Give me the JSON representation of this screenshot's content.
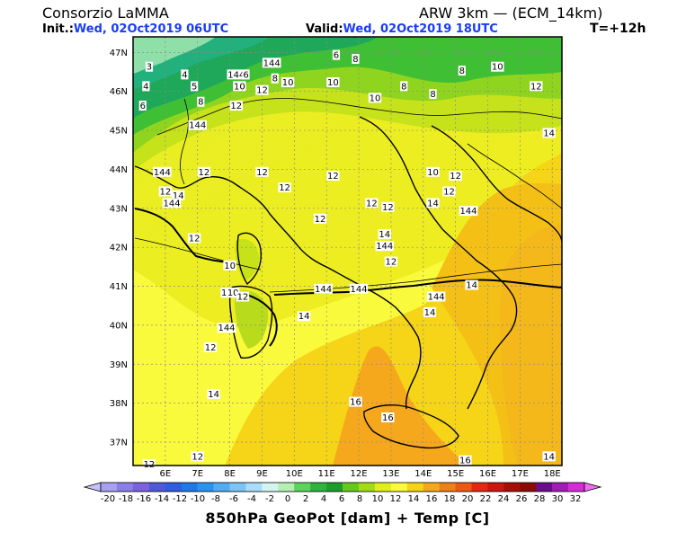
{
  "header": {
    "org": "Consorzio LaMMA",
    "model": "ARW 3km — (ECM_14km)",
    "init_label": "Init.:",
    "init_value": "Wed, 02Oct2019 06UTC",
    "valid_label": "Valid:",
    "valid_value": "Wed, 02Oct2019 18UTC",
    "lead": "T=+12h"
  },
  "axes": {
    "lat_labels": [
      "47N",
      "46N",
      "45N",
      "44N",
      "43N",
      "42N",
      "41N",
      "40N",
      "39N",
      "38N",
      "37N"
    ],
    "lon_labels": [
      "6E",
      "7E",
      "8E",
      "9E",
      "10E",
      "11E",
      "12E",
      "13E",
      "14E",
      "15E",
      "16E",
      "17E",
      "18E"
    ]
  },
  "contour_labels": [
    {
      "text": "4",
      "lon": 6.6,
      "lat": 46.4
    },
    {
      "text": "3",
      "lon": 5.5,
      "lat": 46.6
    },
    {
      "text": "4",
      "lon": 5.4,
      "lat": 46.1
    },
    {
      "text": "6",
      "lon": 5.3,
      "lat": 45.6
    },
    {
      "text": "5",
      "lon": 6.9,
      "lat": 46.1
    },
    {
      "text": "8",
      "lon": 7.1,
      "lat": 45.7
    },
    {
      "text": "144",
      "lon": 7.0,
      "lat": 45.1
    },
    {
      "text": "12",
      "lon": 8.2,
      "lat": 45.6
    },
    {
      "text": "144",
      "lon": 8.2,
      "lat": 46.4
    },
    {
      "text": "6",
      "lon": 8.5,
      "lat": 46.4
    },
    {
      "text": "10",
      "lon": 8.3,
      "lat": 46.1
    },
    {
      "text": "12",
      "lon": 9.0,
      "lat": 46.0
    },
    {
      "text": "144",
      "lon": 9.3,
      "lat": 46.7
    },
    {
      "text": "8",
      "lon": 9.4,
      "lat": 46.3
    },
    {
      "text": "10",
      "lon": 9.8,
      "lat": 46.2
    },
    {
      "text": "6",
      "lon": 11.3,
      "lat": 46.9
    },
    {
      "text": "8",
      "lon": 11.9,
      "lat": 46.8
    },
    {
      "text": "10",
      "lon": 11.2,
      "lat": 46.2
    },
    {
      "text": "10",
      "lon": 12.5,
      "lat": 45.8
    },
    {
      "text": "8",
      "lon": 13.4,
      "lat": 46.1
    },
    {
      "text": "8",
      "lon": 14.3,
      "lat": 45.9
    },
    {
      "text": "8",
      "lon": 15.2,
      "lat": 46.5
    },
    {
      "text": "10",
      "lon": 16.3,
      "lat": 46.6
    },
    {
      "text": "12",
      "lon": 17.5,
      "lat": 46.1
    },
    {
      "text": "14",
      "lon": 17.9,
      "lat": 44.9
    },
    {
      "text": "12",
      "lon": 7.2,
      "lat": 43.9
    },
    {
      "text": "12",
      "lon": 9.0,
      "lat": 43.9
    },
    {
      "text": "144",
      "lon": 5.9,
      "lat": 43.9
    },
    {
      "text": "12",
      "lon": 6.0,
      "lat": 43.4
    },
    {
      "text": "14",
      "lon": 6.4,
      "lat": 43.3
    },
    {
      "text": "144",
      "lon": 6.2,
      "lat": 43.1
    },
    {
      "text": "12",
      "lon": 9.7,
      "lat": 43.5
    },
    {
      "text": "12",
      "lon": 11.2,
      "lat": 43.8
    },
    {
      "text": "10",
      "lon": 14.3,
      "lat": 43.9
    },
    {
      "text": "12",
      "lon": 15.0,
      "lat": 43.8
    },
    {
      "text": "12",
      "lon": 12.4,
      "lat": 43.1
    },
    {
      "text": "12",
      "lon": 12.9,
      "lat": 43.0
    },
    {
      "text": "14",
      "lon": 14.3,
      "lat": 43.1
    },
    {
      "text": "12",
      "lon": 14.8,
      "lat": 43.4
    },
    {
      "text": "144",
      "lon": 15.4,
      "lat": 42.9
    },
    {
      "text": "12",
      "lon": 10.8,
      "lat": 42.7
    },
    {
      "text": "14",
      "lon": 12.8,
      "lat": 42.3
    },
    {
      "text": "12",
      "lon": 6.9,
      "lat": 42.2
    },
    {
      "text": "10",
      "lon": 8.0,
      "lat": 41.5
    },
    {
      "text": "144",
      "lon": 12.8,
      "lat": 42.0
    },
    {
      "text": "12",
      "lon": 13.0,
      "lat": 41.6
    },
    {
      "text": "14",
      "lon": 15.5,
      "lat": 41.0
    },
    {
      "text": "144",
      "lon": 8.0,
      "lat": 40.8
    },
    {
      "text": "10",
      "lon": 8.1,
      "lat": 40.8
    },
    {
      "text": "12",
      "lon": 8.4,
      "lat": 40.7
    },
    {
      "text": "144",
      "lon": 10.9,
      "lat": 40.9
    },
    {
      "text": "144",
      "lon": 12.0,
      "lat": 40.9
    },
    {
      "text": "144",
      "lon": 14.4,
      "lat": 40.7
    },
    {
      "text": "14",
      "lon": 14.2,
      "lat": 40.3
    },
    {
      "text": "14",
      "lon": 10.3,
      "lat": 40.2
    },
    {
      "text": "144",
      "lon": 7.9,
      "lat": 39.9
    },
    {
      "text": "12",
      "lon": 7.4,
      "lat": 39.4
    },
    {
      "text": "14",
      "lon": 7.5,
      "lat": 38.2
    },
    {
      "text": "16",
      "lon": 11.9,
      "lat": 38.0
    },
    {
      "text": "16",
      "lon": 12.9,
      "lat": 37.6
    },
    {
      "text": "12",
      "lon": 7.0,
      "lat": 36.6
    },
    {
      "text": "12",
      "lon": 5.5,
      "lat": 36.4
    },
    {
      "text": "16",
      "lon": 15.3,
      "lat": 36.5
    },
    {
      "text": "14",
      "lon": 17.9,
      "lat": 36.6
    }
  ],
  "colorbar": {
    "labels": [
      "-20",
      "-18",
      "-16",
      "-14",
      "-12",
      "-10",
      "-8",
      "-6",
      "-4",
      "-2",
      "0",
      "2",
      "4",
      "6",
      "8",
      "10",
      "12",
      "14",
      "16",
      "18",
      "20",
      "22",
      "24",
      "26",
      "28",
      "30",
      "32"
    ],
    "colors": [
      "#a8a0f0",
      "#8c7ee8",
      "#7a62e0",
      "#4f58d8",
      "#2f5ce0",
      "#1e78e8",
      "#2894f0",
      "#50acf4",
      "#7cc4f6",
      "#a8dcfa",
      "#d4f4f0",
      "#b4f0b4",
      "#5ad45a",
      "#2cb43c",
      "#1a9e2a",
      "#66c818",
      "#a2dc14",
      "#e2ee1c",
      "#fafa3c",
      "#f4d414",
      "#f6a81c",
      "#ee8016",
      "#ee5812",
      "#e42810",
      "#cc1410",
      "#a80e08",
      "#8c0a06",
      "#6c0c8c",
      "#a01cb4",
      "#d62cd8"
    ]
  },
  "footer": "850hPa GeoPot [dam] + Temp [C]"
}
